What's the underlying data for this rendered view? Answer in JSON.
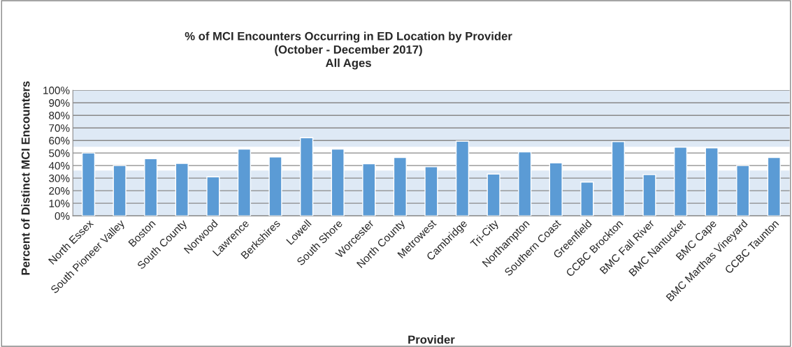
{
  "chart_data": {
    "type": "bar",
    "title": "% of MCI Encounters Occurring in ED Location by Provider\n(October - December 2017)\nAll Ages",
    "xlabel": "Provider",
    "ylabel": "Percent of Distinct MCI Encounters",
    "categories": [
      "North Essex",
      "South Pioneer Valley",
      "Boston",
      "South County",
      "Norwood",
      "Lawrence",
      "Berkshires",
      "Lowell",
      "South Shore",
      "Worcester",
      "North County",
      "Metrowest",
      "Cambridge",
      "Tri-City",
      "Northampton",
      "Southern Coast",
      "Greenfield",
      "CCBC Brockton",
      "BMC Fall River",
      "BMC Nantucket",
      "BMC Cape",
      "BMC Marthas Vineyard",
      "CCBC Taunton"
    ],
    "values": [
      50,
      40,
      45.5,
      41.7,
      31.1,
      53.1,
      46.9,
      62.2,
      53.1,
      41.5,
      46.5,
      39.1,
      59.4,
      33.3,
      50.9,
      42.2,
      26.9,
      59.1,
      32.8,
      54.6,
      54.1,
      40,
      46.5
    ],
    "color": "#5b9bd5",
    "ylim": [
      0,
      100
    ],
    "yticks": [
      {
        "value": 0,
        "label": "0%"
      },
      {
        "value": 10,
        "label": "10%"
      },
      {
        "value": 20,
        "label": "20%"
      },
      {
        "value": 30,
        "label": "30%"
      },
      {
        "value": 40,
        "label": "40%"
      },
      {
        "value": 50,
        "label": "50%"
      },
      {
        "value": 60,
        "label": "60%"
      },
      {
        "value": 70,
        "label": "70%"
      },
      {
        "value": 80,
        "label": "80%"
      },
      {
        "value": 90,
        "label": "90%"
      },
      {
        "value": 100,
        "label": "100%"
      }
    ],
    "bands": [
      {
        "axis": "y",
        "from": 0,
        "to": 36,
        "color": "#dee9f5"
      },
      {
        "axis": "y",
        "from": 55,
        "to": 100,
        "color": "#dee9f5"
      }
    ],
    "grid": "y",
    "legend": false
  }
}
